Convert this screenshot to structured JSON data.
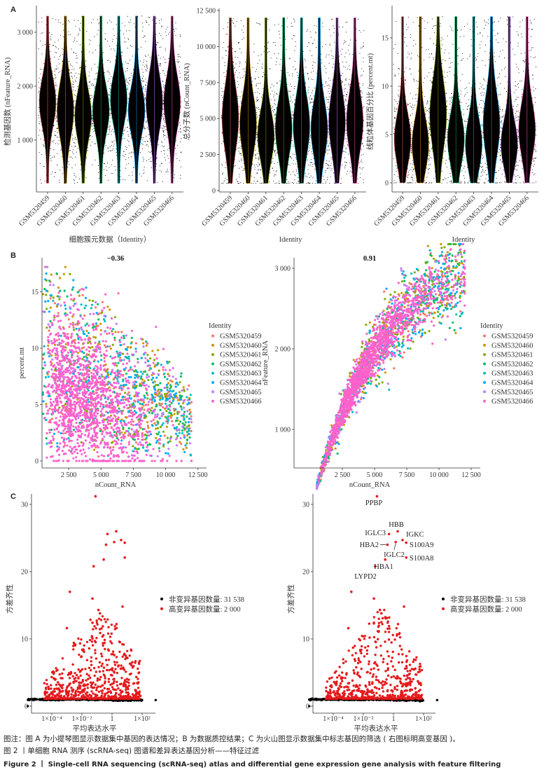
{
  "panels": {
    "a": "A",
    "b": "B",
    "c": "C"
  },
  "caption": {
    "note": "图注：图 A 为小提琴图显示数据集中基因的表达情况；B 为数据质控结果；C 为火山图显示数据集中标志基因的筛选 ( 右图标明高变基因 )。",
    "title_cn": "图 2 丨单细胞 RNA 测序 (scRNA-seq) 图谱和差异表达基因分析——特征过滤",
    "title_en": "Figure 2 丨 Single-cell RNA sequencing (scRNA-seq) atlas and differential gene expression gene analysis with feature filtering"
  },
  "colors": {
    "GSM5320459": "#F8766D",
    "GSM5320460": "#CD9600",
    "GSM5320461": "#7CAE00",
    "GSM5320462": "#00BE67",
    "GSM5320463": "#00BFC4",
    "GSM5320464": "#00A9FF",
    "GSM5320465": "#C77CFF",
    "GSM5320466": "#FF61CC",
    "variable": "#E41A1C",
    "nonvariable": "#000000"
  },
  "chart_data": [
    {
      "type": "violin",
      "panel": "A",
      "categories": [
        "GSM5320459",
        "GSM5320460",
        "GSM5320461",
        "GSM5320462",
        "GSM5320463",
        "GSM5320464",
        "GSM5320465",
        "GSM5320466"
      ],
      "xlabel": "细胞簇元数据（Identity）",
      "ylabel": "检测基因数 (nFeature_RNA)",
      "yticks": [
        {
          "v": 1000,
          "label": "1 000"
        },
        {
          "v": 2000,
          "label": "2 000"
        },
        {
          "v": 3000,
          "label": "3 000"
        }
      ],
      "ylim": [
        200,
        3300
      ],
      "medians": [
        1700,
        1550,
        1450,
        1550,
        1750,
        1550,
        1700,
        1700
      ]
    },
    {
      "type": "violin",
      "panel": "A",
      "categories": [
        "GSM5320459",
        "GSM5320460",
        "GSM5320461",
        "GSM5320462",
        "GSM5320463",
        "GSM5320464",
        "GSM5320465",
        "GSM5320466"
      ],
      "xlabel": "Identity",
      "ylabel": "总分子数 (nCount_RNA)",
      "yticks": [
        {
          "v": 0,
          "label": "0"
        },
        {
          "v": 2500,
          "label": "2 500"
        },
        {
          "v": 5000,
          "label": "5 000"
        },
        {
          "v": 7500,
          "label": "7 500"
        },
        {
          "v": 10000,
          "label": "10 000"
        },
        {
          "v": 12500,
          "label": "12 500"
        }
      ],
      "ylim": [
        500,
        12000
      ],
      "medians": [
        5000,
        4600,
        3800,
        4300,
        4500,
        4300,
        4800,
        4800
      ]
    },
    {
      "type": "violin",
      "panel": "A",
      "categories": [
        "GSM5320459",
        "GSM5320460",
        "GSM5320461",
        "GSM5320462",
        "GSM5320463",
        "GSM5320464",
        "GSM5320465",
        "GSM5320466"
      ],
      "xlabel": "Identity",
      "ylabel": "线粒体基因百分比 (percent.mt)",
      "yticks": [
        {
          "v": 0,
          "label": "0"
        },
        {
          "v": 5,
          "label": "5"
        },
        {
          "v": 10,
          "label": "10"
        },
        {
          "v": 15,
          "label": "15"
        }
      ],
      "ylim": [
        0,
        17.2
      ],
      "medians": [
        4.5,
        4,
        7,
        4.5,
        4,
        6,
        4,
        5.5
      ]
    },
    {
      "type": "scatter",
      "panel": "B",
      "title": "−0.36",
      "xlabel": "nCount_RNA",
      "ylabel": "percent.mt",
      "xticks": [
        {
          "v": 2500,
          "label": "2 500"
        },
        {
          "v": 5000,
          "label": "5 000"
        },
        {
          "v": 7500,
          "label": "7 500"
        },
        {
          "v": 10000,
          "label": "10 000"
        },
        {
          "v": 12500,
          "label": "12 500"
        }
      ],
      "yticks": [
        {
          "v": 0,
          "label": "0"
        },
        {
          "v": 5,
          "label": "5"
        },
        {
          "v": 10,
          "label": "10"
        },
        {
          "v": 15,
          "label": "15"
        }
      ],
      "xlim": [
        500,
        12000
      ],
      "ylim": [
        0,
        17.2
      ],
      "correlation": -0.36,
      "legend": {
        "title": "Identity",
        "position": "right",
        "entries": [
          "GSM5320459",
          "GSM5320460",
          "GSM5320461",
          "GSM5320462",
          "GSM5320463",
          "GSM5320464",
          "GSM5320465",
          "GSM5320466"
        ]
      }
    },
    {
      "type": "scatter",
      "panel": "B",
      "title": "0.91",
      "xlabel": "nCount_RNA",
      "ylabel": "nFeature_RNA",
      "xticks": [
        {
          "v": 2500,
          "label": "2 500"
        },
        {
          "v": 5000,
          "label": "5 000"
        },
        {
          "v": 7500,
          "label": "7 500"
        },
        {
          "v": 10000,
          "label": "10 000"
        },
        {
          "v": 12500,
          "label": "12 500"
        }
      ],
      "yticks": [
        {
          "v": 1000,
          "label": "1 000"
        },
        {
          "v": 2000,
          "label": "2 000"
        },
        {
          "v": 3000,
          "label": "3 000"
        }
      ],
      "xlim": [
        500,
        12000
      ],
      "ylim": [
        200,
        3300
      ],
      "correlation": 0.91,
      "legend": {
        "title": "Identity",
        "position": "right",
        "entries": [
          "GSM5320459",
          "GSM5320460",
          "GSM5320461",
          "GSM5320462",
          "GSM5320463",
          "GSM5320464",
          "GSM5320465",
          "GSM5320466"
        ]
      }
    },
    {
      "type": "scatter",
      "panel": "C",
      "xlabel": "平均表达水平",
      "ylabel": "方差齐性",
      "xscale": "log",
      "xticks": [
        {
          "v": -4,
          "label": "1×10⁻⁴"
        },
        {
          "v": -2,
          "label": "1×10⁻²"
        },
        {
          "v": 0,
          "label": "1"
        },
        {
          "v": 2,
          "label": "1×10²"
        }
      ],
      "yticks": [
        {
          "v": 0,
          "label": "0"
        },
        {
          "v": 10,
          "label": "10"
        },
        {
          "v": 20,
          "label": "20"
        },
        {
          "v": 30,
          "label": "30"
        }
      ],
      "ylim": [
        0,
        32
      ],
      "legend": {
        "position": "right",
        "entries": [
          "非变异基因数量: 31 538",
          "高变异基因数量: 2 000"
        ]
      },
      "counts": {
        "nonvariable": 31538,
        "variable": 2000
      }
    },
    {
      "type": "scatter",
      "panel": "C",
      "xlabel": "平均表达水平",
      "ylabel": "方差齐性",
      "xscale": "log",
      "xticks": [
        {
          "v": -4,
          "label": "1×10⁻⁴"
        },
        {
          "v": -2,
          "label": "1×10⁻²"
        },
        {
          "v": 0,
          "label": "1"
        },
        {
          "v": 2,
          "label": "1×10²"
        }
      ],
      "yticks": [
        {
          "v": 0,
          "label": "0"
        },
        {
          "v": 10,
          "label": "10"
        },
        {
          "v": 20,
          "label": "20"
        },
        {
          "v": 30,
          "label": "30"
        }
      ],
      "ylim": [
        0,
        32
      ],
      "legend": {
        "position": "right",
        "entries": [
          "非变异基因数量: 31 538",
          "高变异基因数量: 2 000"
        ]
      },
      "counts": {
        "nonvariable": 31538,
        "variable": 2000
      },
      "labeled_genes": [
        {
          "gene": "PPBP",
          "mean": 0.08,
          "variance": 31.2
        },
        {
          "gene": "HBB",
          "mean": 1.9,
          "variance": 26.0
        },
        {
          "gene": "IGLC3",
          "mean": 0.5,
          "variance": 25.6
        },
        {
          "gene": "IGKC",
          "mean": 4.0,
          "variance": 24.7
        },
        {
          "gene": "HBA2",
          "mean": 0.4,
          "variance": 24.0
        },
        {
          "gene": "S100A9",
          "mean": 7.0,
          "variance": 24.3
        },
        {
          "gene": "IGLC2",
          "mean": 1.4,
          "variance": 24.4
        },
        {
          "gene": "S100A8",
          "mean": 7.0,
          "variance": 22.1
        },
        {
          "gene": "HBA1",
          "mean": 0.28,
          "variance": 21.8
        },
        {
          "gene": "LYPD2",
          "mean": 0.06,
          "variance": 20.8
        }
      ]
    }
  ]
}
